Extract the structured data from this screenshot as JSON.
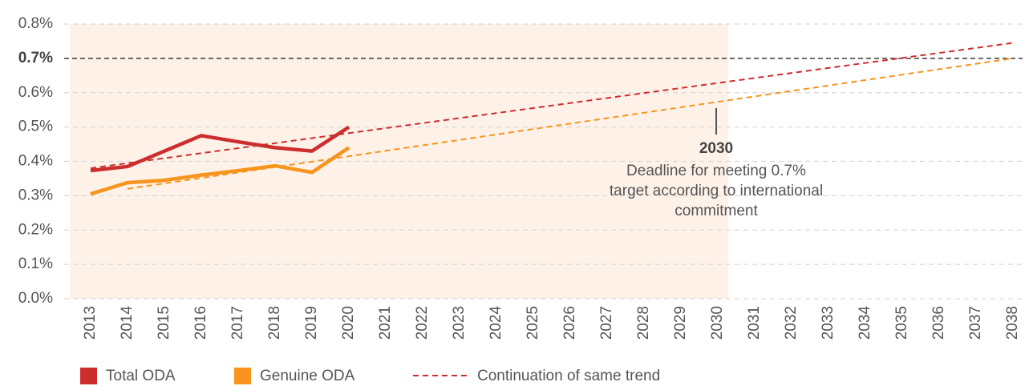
{
  "chart_data": {
    "type": "line",
    "x": [
      2013,
      2014,
      2015,
      2016,
      2017,
      2018,
      2019,
      2020,
      2021,
      2022,
      2023,
      2024,
      2025,
      2026,
      2027,
      2028,
      2029,
      2030,
      2031,
      2032,
      2033,
      2034,
      2035,
      2036,
      2037,
      2038
    ],
    "xlim": [
      2013,
      2038
    ],
    "ylim": [
      0,
      0.8
    ],
    "yticks": [
      {
        "value": 0,
        "label": "0.0%"
      },
      {
        "value": 0.1,
        "label": "0.1%"
      },
      {
        "value": 0.2,
        "label": "0.2%"
      },
      {
        "value": 0.3,
        "label": "0.3%"
      },
      {
        "value": 0.4,
        "label": "0.4%"
      },
      {
        "value": 0.5,
        "label": "0.5%"
      },
      {
        "value": 0.6,
        "label": "0.6%"
      },
      {
        "value": 0.7,
        "label": "0.7%"
      },
      {
        "value": 0.8,
        "label": "0.8%"
      }
    ],
    "target": 0.7,
    "grid": true,
    "series": [
      {
        "name": "Total ODA",
        "color": "#cc2e2e",
        "x": [
          2013,
          2014,
          2015,
          2016,
          2017,
          2018,
          2019,
          2020
        ],
        "values": [
          0.373,
          0.385,
          0.43,
          0.475,
          0.457,
          0.44,
          0.43,
          0.5
        ]
      },
      {
        "name": "Genuine ODA",
        "color": "#f7941d",
        "x": [
          2013,
          2014,
          2015,
          2016,
          2017,
          2018,
          2019,
          2020
        ],
        "values": [
          0.305,
          0.338,
          0.345,
          0.36,
          0.373,
          0.387,
          0.368,
          0.44
        ]
      },
      {
        "name": "Continuation of same trend",
        "color": "#cc2e2e",
        "dashed": true,
        "x": [
          2013,
          2038
        ],
        "values": [
          0.38,
          0.745
        ]
      },
      {
        "color": "#f7941d",
        "dashed": true,
        "x": [
          2014,
          2038
        ],
        "values": [
          0.32,
          0.7
        ]
      }
    ],
    "annotation": {
      "x": 2030,
      "title": "2030",
      "text": [
        "Deadline for meeting 0.7%",
        "target according to international",
        "commitment"
      ]
    }
  }
}
